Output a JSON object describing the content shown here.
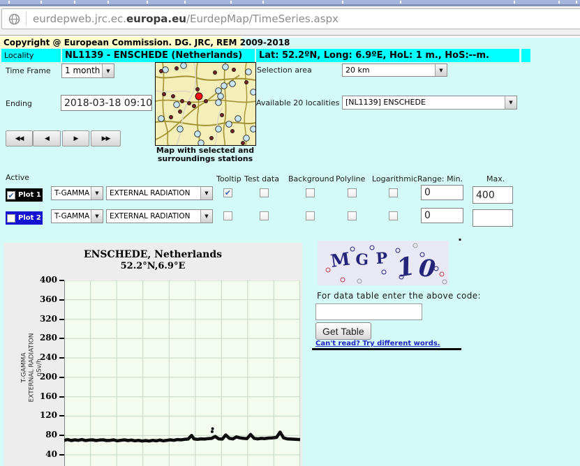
{
  "browser": {
    "url_prefix": "eurdepweb.jrc.ec.",
    "url_domain": "europa.eu",
    "url_path": "/EurdepMap/TimeSeries.aspx"
  },
  "header": {
    "copyright": "Copyright @ European Commission. DG. JRC, REM 2009-2018"
  },
  "locality": {
    "label": "Locality",
    "name": "NL1139 - ENSCHEDE (Netherlands)",
    "coords": "Lat: 52.2ºN, Long: 6.9ºE, HoL: 1 m., HoS:--m."
  },
  "controls": {
    "time_frame_label": "Time Frame",
    "time_frame_value": "1 month",
    "selection_area_label": "Selection area",
    "selection_area_value": "20 km",
    "ending_label": "Ending",
    "ending_value": "2018-03-18 09:10",
    "localities_label": "Available 20 localities",
    "localities_value": "[NL1139] ENSCHEDE",
    "map_caption_line1": "Map with selected and",
    "map_caption_line2": "surroundings stations"
  },
  "icons": {
    "dropdown_arrow": "▼",
    "nav_first": "◀◀",
    "nav_prev": "◀",
    "nav_next": "▶",
    "nav_last": "▶▶",
    "globe": "globe-page-icon"
  },
  "plots": {
    "active_label": "Active",
    "columns": [
      "Tooltip",
      "Test data",
      "Background",
      "Polyline",
      "Logarithmic",
      "Range: Min.",
      "Max."
    ],
    "rows": [
      {
        "label": "Plot 1",
        "type_value": "T-GAMMA",
        "quantity_value": "EXTERNAL RADIATION",
        "active_check": "✔",
        "tooltip_check": "✔",
        "testdata_check": "",
        "background_check": "",
        "polyline_check": "",
        "log_check": "",
        "min_value": "0",
        "max_value": "400"
      },
      {
        "label": "Plot 2",
        "type_value": "T-GAMMA",
        "quantity_value": "EXTERNAL RADIATION",
        "active_check": "",
        "tooltip_check": "",
        "testdata_check": "",
        "background_check": "",
        "polyline_check": "",
        "log_check": "",
        "min_value": "0",
        "max_value": ""
      }
    ]
  },
  "chart_data": {
    "type": "line",
    "title": "ENSCHEDE, Netherlands",
    "subtitle": "52.2°N,6.9°E",
    "ylabel_lines": [
      "T-GAMMA",
      "EXTERNAL RADIATION",
      "nSv/h"
    ],
    "unit": "nSv/h",
    "ylim": [
      40,
      400
    ],
    "yticks": [
      400,
      360,
      320,
      280,
      240,
      200,
      160,
      120,
      80,
      40
    ],
    "grid": true,
    "x_intervals": 9,
    "legend": "none",
    "line_color": "#0d0d0d",
    "plot_bg": "#f3fcee",
    "grid_color": "#c5d7c5",
    "series": [
      {
        "name": "T-GAMMA EXTERNAL RADIATION",
        "points": [
          [
            0,
            70
          ],
          [
            0.015,
            71.5
          ],
          [
            0.03,
            69.5
          ],
          [
            0.045,
            71
          ],
          [
            0.06,
            70
          ],
          [
            0.075,
            71.5
          ],
          [
            0.09,
            69.5
          ],
          [
            0.105,
            70.5
          ],
          [
            0.12,
            71
          ],
          [
            0.135,
            69.5
          ],
          [
            0.15,
            70.5
          ],
          [
            0.165,
            71
          ],
          [
            0.18,
            69.5
          ],
          [
            0.195,
            70
          ],
          [
            0.21,
            71
          ],
          [
            0.225,
            69
          ],
          [
            0.24,
            70
          ],
          [
            0.255,
            71
          ],
          [
            0.27,
            69.5
          ],
          [
            0.285,
            70.5
          ],
          [
            0.3,
            69
          ],
          [
            0.315,
            70
          ],
          [
            0.33,
            68.5
          ],
          [
            0.345,
            69.5
          ],
          [
            0.36,
            68.5
          ],
          [
            0.375,
            70
          ],
          [
            0.39,
            69
          ],
          [
            0.405,
            70.5
          ],
          [
            0.42,
            69
          ],
          [
            0.435,
            70
          ],
          [
            0.45,
            71
          ],
          [
            0.465,
            70
          ],
          [
            0.48,
            71.5
          ],
          [
            0.495,
            71
          ],
          [
            0.51,
            72
          ],
          [
            0.525,
            72.5
          ],
          [
            0.54,
            80
          ],
          [
            0.55,
            73
          ],
          [
            0.565,
            72
          ],
          [
            0.58,
            73
          ],
          [
            0.595,
            72.5
          ],
          [
            0.61,
            73.5
          ],
          [
            0.625,
            74
          ],
          [
            0.64,
            78
          ],
          [
            0.655,
            73
          ],
          [
            0.67,
            72.5
          ],
          [
            0.685,
            81
          ],
          [
            0.7,
            74
          ],
          [
            0.715,
            73
          ],
          [
            0.73,
            77
          ],
          [
            0.745,
            75
          ],
          [
            0.76,
            74
          ],
          [
            0.775,
            73.5
          ],
          [
            0.79,
            82
          ],
          [
            0.805,
            74
          ],
          [
            0.82,
            73
          ],
          [
            0.835,
            74
          ],
          [
            0.85,
            73.5
          ],
          [
            0.865,
            74.5
          ],
          [
            0.88,
            75
          ],
          [
            0.9,
            76
          ],
          [
            0.915,
            87
          ],
          [
            0.93,
            75
          ],
          [
            0.945,
            73
          ],
          [
            0.96,
            72.5
          ],
          [
            0.98,
            72
          ],
          [
            1,
            71.5
          ]
        ]
      }
    ],
    "outliers": [
      [
        0.627,
        88
      ],
      [
        0.629,
        94
      ]
    ]
  },
  "captcha": {
    "letters": [
      "M",
      "G",
      "P",
      "1",
      "0"
    ],
    "instruction": "For data table enter the above code:",
    "input_value": "",
    "button_label": "Get Table",
    "link_label": "Can't read? Try different words.",
    "stray_dot": "."
  },
  "colors": {
    "highlight_cyan": "#00ffff",
    "copyright_yellow": "#ffffcc",
    "page_background": "#d3faf6",
    "plot1_chip": "#000000",
    "plot2_chip": "#1414d2",
    "captcha_bg": "#e9e9f5",
    "captcha_ink": "#24247a",
    "link_blue": "#2222c4",
    "selected_station_red": "#f50f0f"
  }
}
